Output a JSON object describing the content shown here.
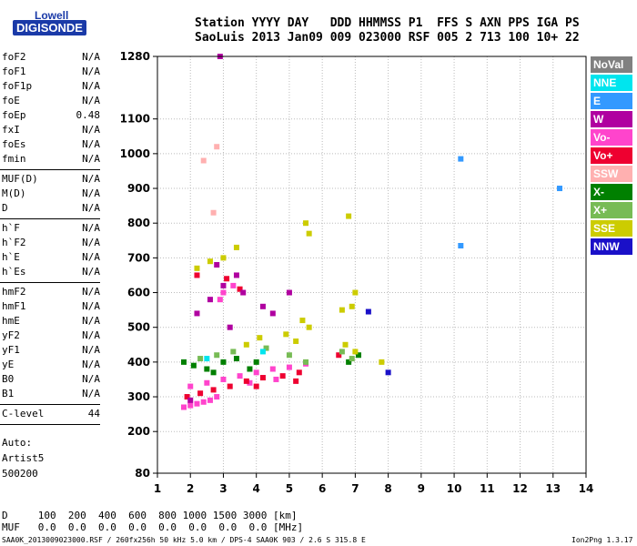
{
  "logo": {
    "top": "Lowell",
    "bottom": "DIGISONDE"
  },
  "header": {
    "line1": "Station YYYY DAY   DDD HHMMSS P1  FFS S AXN PPS IGA PS",
    "line2": "SaoLuis 2013 Jan09 009 023000 RSF 005 2 713 100 10+ 22"
  },
  "params_group1": [
    {
      "name": "foF2",
      "value": "N/A"
    },
    {
      "name": "foF1",
      "value": "N/A"
    },
    {
      "name": "foF1p",
      "value": "N/A"
    },
    {
      "name": "foE",
      "value": "N/A"
    },
    {
      "name": "foEp",
      "value": "0.48"
    },
    {
      "name": "fxI",
      "value": "N/A"
    },
    {
      "name": "foEs",
      "value": "N/A"
    },
    {
      "name": "fmin",
      "value": "N/A"
    }
  ],
  "params_group2": [
    {
      "name": "MUF(D)",
      "value": "N/A"
    },
    {
      "name": "M(D)",
      "value": "N/A"
    },
    {
      "name": "D",
      "value": "N/A"
    }
  ],
  "params_group3": [
    {
      "name": "h`F",
      "value": "N/A"
    },
    {
      "name": "h`F2",
      "value": "N/A"
    },
    {
      "name": "h`E",
      "value": "N/A"
    },
    {
      "name": "h`Es",
      "value": "N/A"
    }
  ],
  "params_group4": [
    {
      "name": "hmF2",
      "value": "N/A"
    },
    {
      "name": "hmF1",
      "value": "N/A"
    },
    {
      "name": "hmE",
      "value": "N/A"
    },
    {
      "name": "yF2",
      "value": "N/A"
    },
    {
      "name": "yF1",
      "value": "N/A"
    },
    {
      "name": "yE",
      "value": "N/A"
    },
    {
      "name": "B0",
      "value": "N/A"
    },
    {
      "name": "B1",
      "value": "N/A"
    }
  ],
  "params_group5": [
    {
      "name": "C-level",
      "value": "44"
    }
  ],
  "autoscale": {
    "line1": "Auto:",
    "line2": "Artist5",
    "line3": "500200"
  },
  "legend": [
    {
      "label": "NoVal",
      "color": "#808080"
    },
    {
      "label": "NNE",
      "color": "#00e5ee"
    },
    {
      "label": "E",
      "color": "#3399ff"
    },
    {
      "label": "W",
      "color": "#b000a0"
    },
    {
      "label": "Vo-",
      "color": "#ff44cc"
    },
    {
      "label": "Vo+",
      "color": "#ee0030"
    },
    {
      "label": "SSW",
      "color": "#ffb0b0"
    },
    {
      "label": "X-",
      "color": "#008000"
    },
    {
      "label": "X+",
      "color": "#77bb55"
    },
    {
      "label": "SSE",
      "color": "#cccc00"
    },
    {
      "label": "NNW",
      "color": "#1a10c8"
    }
  ],
  "muf_table": {
    "line1": "D     100  200  400  600  800 1000 1500 3000 [km]",
    "line2": "MUF   0.0  0.0  0.0  0.0  0.0  0.0  0.0  0.0 [MHz]"
  },
  "footer": {
    "left": "SAA0K_2013009023000.RSF / 260fx256h 50 kHz 5.0 km / DPS-4 SAA0K 903 / 2.6 S 315.8 E",
    "right": "Ion2Png 1.3.17"
  },
  "chart_data": {
    "type": "scatter",
    "xlim": [
      1,
      14
    ],
    "ylim": [
      80,
      1280
    ],
    "x_ticks": [
      "1",
      "2",
      "3",
      "4",
      "5",
      "6",
      "7",
      "8",
      "9",
      "10",
      "11",
      "12",
      "13",
      "14"
    ],
    "y_ticks": [
      "80",
      "200",
      "300",
      "400",
      "500",
      "600",
      "700",
      "800",
      "900",
      "1000",
      "1100",
      "1280"
    ],
    "grid": true,
    "series": [
      {
        "name": "Vo-",
        "points": [
          [
            1.8,
            270
          ],
          [
            2.0,
            275
          ],
          [
            2.2,
            280
          ],
          [
            2.4,
            285
          ],
          [
            2.6,
            290
          ],
          [
            2.8,
            300
          ],
          [
            2.0,
            330
          ],
          [
            2.5,
            340
          ],
          [
            3.0,
            350
          ],
          [
            3.5,
            360
          ],
          [
            4.0,
            370
          ],
          [
            4.5,
            380
          ],
          [
            5.0,
            385
          ],
          [
            5.5,
            395
          ],
          [
            3.0,
            600
          ],
          [
            3.3,
            620
          ],
          [
            2.9,
            580
          ],
          [
            4.6,
            350
          ],
          [
            3.8,
            340
          ]
        ]
      },
      {
        "name": "Vo+",
        "points": [
          [
            1.9,
            300
          ],
          [
            2.3,
            310
          ],
          [
            2.7,
            320
          ],
          [
            3.2,
            330
          ],
          [
            3.7,
            345
          ],
          [
            4.2,
            355
          ],
          [
            4.8,
            360
          ],
          [
            5.3,
            370
          ],
          [
            6.5,
            420
          ],
          [
            3.1,
            640
          ],
          [
            3.5,
            610
          ],
          [
            2.2,
            650
          ],
          [
            4.0,
            330
          ],
          [
            5.2,
            345
          ]
        ]
      },
      {
        "name": "W",
        "points": [
          [
            2.0,
            290
          ],
          [
            2.6,
            580
          ],
          [
            3.0,
            620
          ],
          [
            3.4,
            650
          ],
          [
            2.8,
            680
          ],
          [
            3.6,
            600
          ],
          [
            4.2,
            560
          ],
          [
            4.5,
            540
          ],
          [
            5.0,
            600
          ],
          [
            3.2,
            500
          ],
          [
            2.2,
            540
          ],
          [
            2.9,
            1280
          ]
        ]
      },
      {
        "name": "X-",
        "points": [
          [
            1.8,
            400
          ],
          [
            2.1,
            390
          ],
          [
            2.5,
            380
          ],
          [
            3.0,
            400
          ],
          [
            3.4,
            410
          ],
          [
            4.0,
            400
          ],
          [
            2.7,
            370
          ],
          [
            3.8,
            380
          ],
          [
            7.1,
            420
          ],
          [
            6.8,
            400
          ]
        ]
      },
      {
        "name": "X+",
        "points": [
          [
            2.3,
            410
          ],
          [
            2.8,
            420
          ],
          [
            3.3,
            430
          ],
          [
            4.3,
            440
          ],
          [
            5.0,
            420
          ],
          [
            5.5,
            400
          ],
          [
            6.6,
            430
          ],
          [
            6.9,
            410
          ]
        ]
      },
      {
        "name": "SSE",
        "points": [
          [
            2.2,
            670
          ],
          [
            2.6,
            690
          ],
          [
            3.0,
            700
          ],
          [
            3.4,
            730
          ],
          [
            5.5,
            800
          ],
          [
            5.6,
            770
          ],
          [
            6.8,
            820
          ],
          [
            5.4,
            520
          ],
          [
            5.6,
            500
          ],
          [
            6.6,
            550
          ],
          [
            6.9,
            560
          ],
          [
            7.0,
            600
          ],
          [
            6.7,
            450
          ],
          [
            7.0,
            430
          ],
          [
            7.8,
            400
          ],
          [
            5.2,
            460
          ],
          [
            4.9,
            480
          ],
          [
            3.7,
            450
          ],
          [
            4.1,
            470
          ]
        ]
      },
      {
        "name": "SSW",
        "points": [
          [
            2.4,
            980
          ],
          [
            2.7,
            830
          ],
          [
            2.8,
            1020
          ]
        ]
      },
      {
        "name": "E",
        "points": [
          [
            10.2,
            985
          ],
          [
            10.2,
            735
          ],
          [
            13.2,
            900
          ]
        ]
      },
      {
        "name": "NNW",
        "points": [
          [
            7.4,
            545
          ],
          [
            8.0,
            370
          ]
        ]
      },
      {
        "name": "NNE",
        "points": [
          [
            2.5,
            410
          ],
          [
            4.2,
            430
          ]
        ]
      }
    ]
  }
}
